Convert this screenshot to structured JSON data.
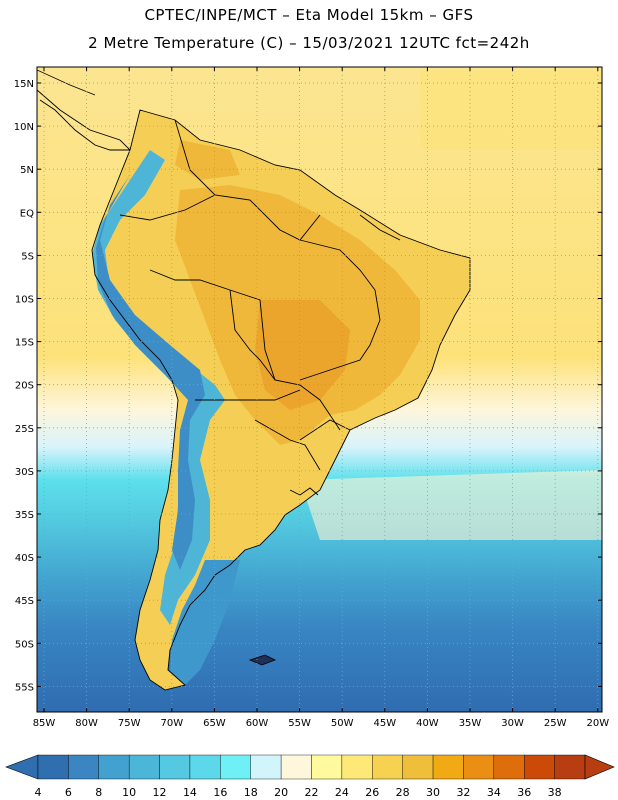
{
  "header": {
    "line1": "CPTEC/INPE/MCT –  Eta Model 15km – GFS",
    "line2": "2 Metre Temperature (C) – 15/03/2021 12UTC fct=242h"
  },
  "map": {
    "lat_labels": [
      "15N",
      "10N",
      "5N",
      "EQ",
      "5S",
      "10S",
      "15S",
      "20S",
      "25S",
      "30S",
      "35S",
      "40S",
      "45S",
      "50S",
      "55S"
    ],
    "lon_labels": [
      "85W",
      "80W",
      "75W",
      "70W",
      "65W",
      "60W",
      "55W",
      "50W",
      "45W",
      "40W",
      "35W",
      "30W",
      "25W",
      "20W"
    ]
  },
  "colorbar": {
    "ticks": [
      "4",
      "6",
      "8",
      "10",
      "12",
      "14",
      "16",
      "18",
      "20",
      "22",
      "24",
      "26",
      "28",
      "30",
      "32",
      "34",
      "36",
      "38"
    ],
    "colors": [
      "#2f6fb0",
      "#3b85c2",
      "#43a1cf",
      "#4bb6d8",
      "#55c8e2",
      "#5dd8ea",
      "#6ff0f6",
      "#d2f4fb",
      "#fff7dc",
      "#fffa9e",
      "#fde878",
      "#f7d251",
      "#efbf3b",
      "#f2aa14",
      "#ea8f14",
      "#de6e0c",
      "#cc4a08",
      "#b83d10"
    ],
    "low_color": "#2f6fb0",
    "high_color": "#b83d10"
  }
}
